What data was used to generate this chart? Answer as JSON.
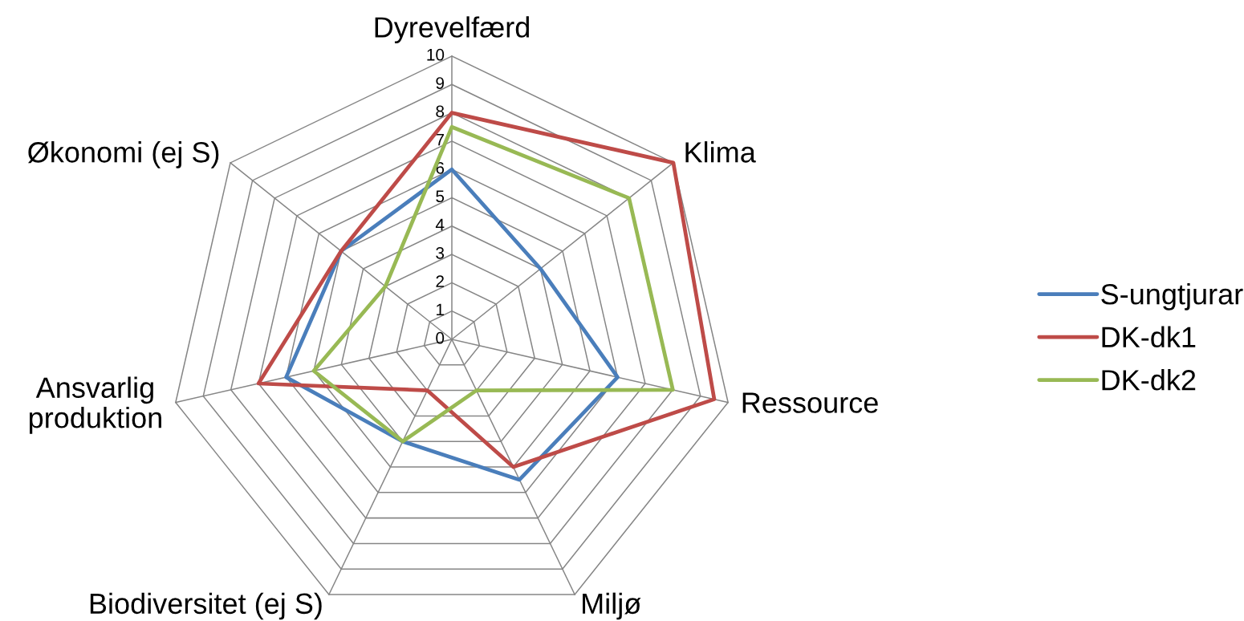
{
  "chart_data": {
    "type": "radar",
    "categories": [
      "Dyrevelfærd",
      "Klima",
      "Ressource",
      "Miljø",
      "Biodiversitet (ej S)",
      "Ansvarlig\nproduktion",
      "Økonomi (ej S)"
    ],
    "series": [
      {
        "name": "S-ungtjurar",
        "color": "#4a7ebb",
        "values": [
          6,
          4,
          6,
          5.5,
          4,
          6,
          5
        ]
      },
      {
        "name": "DK-dk1",
        "color": "#be4b48",
        "values": [
          8,
          10,
          9.5,
          5,
          2,
          7,
          5
        ]
      },
      {
        "name": "DK-dk2",
        "color": "#98b954",
        "values": [
          7.5,
          8,
          8,
          2,
          4,
          5,
          3
        ]
      }
    ],
    "ylim": [
      0,
      10
    ],
    "yticks": [
      0,
      1,
      2,
      3,
      4,
      5,
      6,
      7,
      8,
      9,
      10
    ],
    "grid": true,
    "legend": "right",
    "marker": "none",
    "line_style": "solid"
  }
}
